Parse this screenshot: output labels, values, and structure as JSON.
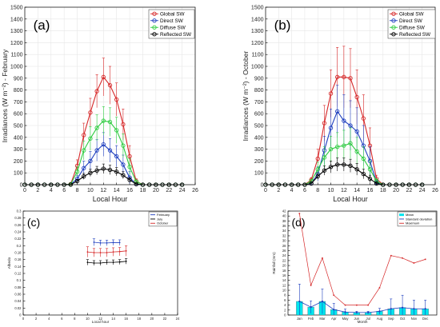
{
  "chart_data": [
    {
      "id": "a",
      "type": "line",
      "panel_label": "(a)",
      "xlabel": "Local Hour",
      "ylabel": "Irradiances (W m⁻²) - February",
      "xlim": [
        0,
        26
      ],
      "ylim": [
        0,
        1500
      ],
      "xticks": [
        "0",
        "2",
        "4",
        "6",
        "8",
        "10",
        "12",
        "14",
        "16",
        "18",
        "20",
        "22",
        "24",
        "26"
      ],
      "yticks": [
        "0",
        "100",
        "200",
        "300",
        "400",
        "500",
        "600",
        "700",
        "800",
        "900",
        "1000",
        "1100",
        "1200",
        "1300",
        "1400",
        "1500"
      ],
      "grid": true,
      "legend": "top-right",
      "x": [
        0,
        1,
        2,
        3,
        4,
        5,
        6,
        7,
        8,
        9,
        10,
        11,
        12,
        13,
        14,
        15,
        16,
        17,
        18,
        19,
        20,
        21,
        22,
        23,
        24
      ],
      "series": [
        {
          "name": "Global SW",
          "color": "#d62728",
          "values": [
            0,
            0,
            0,
            0,
            0,
            0,
            0,
            5,
            160,
            420,
            610,
            790,
            910,
            840,
            720,
            510,
            240,
            30,
            0,
            0,
            0,
            0,
            0,
            0,
            0
          ],
          "err": [
            0,
            0,
            0,
            0,
            0,
            0,
            0,
            5,
            50,
            100,
            120,
            140,
            160,
            160,
            140,
            130,
            90,
            20,
            0,
            0,
            0,
            0,
            0,
            0,
            0
          ]
        },
        {
          "name": "Direct SW",
          "color": "#1f3fbf",
          "values": [
            0,
            0,
            0,
            0,
            0,
            0,
            0,
            2,
            50,
            140,
            200,
            290,
            340,
            290,
            240,
            170,
            60,
            5,
            0,
            0,
            0,
            0,
            0,
            0,
            0
          ],
          "err": [
            0,
            0,
            0,
            0,
            0,
            0,
            0,
            2,
            30,
            60,
            80,
            90,
            100,
            100,
            90,
            80,
            50,
            5,
            0,
            0,
            0,
            0,
            0,
            0,
            0
          ]
        },
        {
          "name": "Diffuse SW",
          "color": "#2ecc40",
          "values": [
            0,
            0,
            0,
            0,
            0,
            0,
            0,
            3,
            110,
            290,
            390,
            480,
            540,
            530,
            460,
            330,
            150,
            25,
            0,
            0,
            0,
            0,
            0,
            0,
            0
          ],
          "err": [
            0,
            0,
            0,
            0,
            0,
            0,
            0,
            3,
            40,
            80,
            100,
            110,
            120,
            120,
            110,
            100,
            70,
            15,
            0,
            0,
            0,
            0,
            0,
            0,
            0
          ]
        },
        {
          "name": "Reflected SW",
          "color": "#000000",
          "values": [
            0,
            0,
            0,
            0,
            0,
            0,
            0,
            1,
            30,
            70,
            100,
            120,
            135,
            125,
            110,
            80,
            40,
            5,
            0,
            0,
            0,
            0,
            0,
            0,
            0
          ],
          "err": [
            0,
            0,
            0,
            0,
            0,
            0,
            0,
            1,
            15,
            25,
            30,
            35,
            40,
            40,
            35,
            30,
            20,
            5,
            0,
            0,
            0,
            0,
            0,
            0,
            0
          ]
        }
      ]
    },
    {
      "id": "b",
      "type": "line",
      "panel_label": "(b)",
      "xlabel": "Local Hour",
      "ylabel": "Irradiances (W m⁻²) - October",
      "xlim": [
        0,
        26
      ],
      "ylim": [
        0,
        1500
      ],
      "xticks": [
        "0",
        "2",
        "4",
        "6",
        "8",
        "10",
        "12",
        "14",
        "16",
        "18",
        "20",
        "22",
        "24",
        "26"
      ],
      "yticks": [
        "0",
        "100",
        "200",
        "300",
        "400",
        "500",
        "600",
        "700",
        "800",
        "900",
        "1000",
        "1100",
        "1200",
        "1300",
        "1400",
        "1500"
      ],
      "grid": true,
      "legend": "top-right",
      "x": [
        0,
        1,
        2,
        3,
        4,
        5,
        6,
        7,
        8,
        9,
        10,
        11,
        12,
        13,
        14,
        15,
        16,
        17,
        18,
        19,
        20,
        21,
        22,
        23,
        24
      ],
      "series": [
        {
          "name": "Global SW",
          "color": "#d62728",
          "values": [
            0,
            0,
            0,
            0,
            0,
            0,
            0,
            40,
            220,
            520,
            770,
            910,
            910,
            900,
            740,
            560,
            330,
            50,
            0,
            0,
            0,
            0,
            0,
            0,
            0
          ],
          "err": [
            0,
            0,
            0,
            0,
            0,
            0,
            0,
            20,
            80,
            150,
            200,
            250,
            260,
            250,
            230,
            200,
            150,
            30,
            0,
            0,
            0,
            0,
            0,
            0,
            0
          ]
        },
        {
          "name": "Direct SW",
          "color": "#1f3fbf",
          "values": [
            0,
            0,
            0,
            0,
            0,
            0,
            0,
            10,
            90,
            290,
            480,
            620,
            540,
            500,
            450,
            330,
            200,
            20,
            0,
            0,
            0,
            0,
            0,
            0,
            0
          ],
          "err": [
            0,
            0,
            0,
            0,
            0,
            0,
            0,
            10,
            60,
            120,
            160,
            220,
            220,
            210,
            200,
            170,
            120,
            20,
            0,
            0,
            0,
            0,
            0,
            0,
            0
          ]
        },
        {
          "name": "Diffuse SW",
          "color": "#2ecc40",
          "values": [
            0,
            0,
            0,
            0,
            0,
            0,
            0,
            30,
            130,
            230,
            300,
            320,
            330,
            350,
            280,
            220,
            130,
            30,
            0,
            0,
            0,
            0,
            0,
            0,
            0
          ],
          "err": [
            0,
            0,
            0,
            0,
            0,
            0,
            0,
            15,
            60,
            90,
            110,
            120,
            130,
            130,
            120,
            100,
            70,
            20,
            0,
            0,
            0,
            0,
            0,
            0,
            0
          ]
        },
        {
          "name": "Reflected SW",
          "color": "#000000",
          "values": [
            0,
            0,
            0,
            0,
            0,
            0,
            0,
            10,
            70,
            120,
            150,
            170,
            170,
            160,
            130,
            90,
            50,
            10,
            0,
            0,
            0,
            0,
            0,
            0,
            0
          ],
          "err": [
            0,
            0,
            0,
            0,
            0,
            0,
            0,
            5,
            25,
            40,
            50,
            55,
            55,
            55,
            50,
            40,
            30,
            10,
            0,
            0,
            0,
            0,
            0,
            0,
            0
          ]
        }
      ]
    },
    {
      "id": "c",
      "type": "line",
      "panel_label": "(c)",
      "xlabel": "Local hour",
      "ylabel": "Albedo",
      "xlim": [
        0,
        24
      ],
      "ylim": [
        0,
        0.3
      ],
      "xticks": [
        "0",
        "2",
        "4",
        "6",
        "8",
        "10",
        "12",
        "14",
        "16",
        "18",
        "20",
        "22",
        "24"
      ],
      "yticks": [
        "0",
        "0.02",
        "0.04",
        "0.06",
        "0.08",
        "0.1",
        "0.12",
        "0.14",
        "0.16",
        "0.18",
        "0.2",
        "0.22",
        "0.24",
        "0.26",
        "0.28",
        "0.3"
      ],
      "grid": false,
      "legend": "top-right",
      "series": [
        {
          "name": "February",
          "color": "#1f3fbf",
          "x": [
            11,
            12,
            13,
            14,
            15
          ],
          "values": [
            0.21,
            0.208,
            0.208,
            0.209,
            0.209
          ],
          "err": [
            0.01,
            0.008,
            0.008,
            0.008,
            0.008
          ]
        },
        {
          "name": "July",
          "color": "#000000",
          "x": [
            10,
            11,
            12,
            13,
            14,
            15,
            16
          ],
          "values": [
            0.152,
            0.15,
            0.15,
            0.152,
            0.152,
            0.153,
            0.155
          ],
          "err": [
            0.008,
            0.007,
            0.007,
            0.007,
            0.007,
            0.007,
            0.008
          ]
        },
        {
          "name": "October",
          "color": "#d62728",
          "x": [
            10,
            11,
            12,
            13,
            14,
            15,
            16
          ],
          "values": [
            0.182,
            0.18,
            0.18,
            0.18,
            0.182,
            0.183,
            0.185
          ],
          "err": [
            0.015,
            0.012,
            0.012,
            0.012,
            0.012,
            0.012,
            0.015
          ]
        }
      ]
    },
    {
      "id": "d",
      "type": "bar",
      "panel_label": "(d)",
      "xlabel": "Month",
      "ylabel": "Rainfall (mm)",
      "ylim": [
        0,
        42
      ],
      "categories": [
        "Jan",
        "Feb",
        "Mar",
        "Apr",
        "May",
        "Jun",
        "Jul",
        "Aug",
        "Sep",
        "Oct",
        "Nov",
        "Dec"
      ],
      "yticks": [
        "0",
        "2",
        "4",
        "6",
        "8",
        "10",
        "12",
        "14",
        "16",
        "18",
        "20",
        "22",
        "24",
        "26",
        "28",
        "30",
        "32",
        "34",
        "36",
        "38",
        "40",
        "42"
      ],
      "grid": false,
      "legend": "top-right",
      "series": [
        {
          "name": "Mean",
          "color": "#00e5ee",
          "kind": "bar",
          "values": [
            5.5,
            3.2,
            5.5,
            2.2,
            1.2,
            1.0,
            1.0,
            1.5,
            2.5,
            3.0,
            2.5,
            2.5
          ]
        },
        {
          "name": "Standard deviation",
          "color": "#1f3fbf",
          "kind": "errorbar",
          "values": [
            5.5,
            3.2,
            5.5,
            2.2,
            1.2,
            1.0,
            1.0,
            1.5,
            2.5,
            3.0,
            2.5,
            2.5
          ],
          "err": [
            7.0,
            2.5,
            5.0,
            2.5,
            1.2,
            0.5,
            0.5,
            1.2,
            4.0,
            5.0,
            3.5,
            3.5
          ]
        },
        {
          "name": "Maximum",
          "color": "#d62728",
          "kind": "line",
          "values": [
            41,
            12,
            23,
            8,
            4,
            4,
            4,
            11,
            24,
            23,
            21,
            22.5
          ]
        }
      ]
    }
  ]
}
